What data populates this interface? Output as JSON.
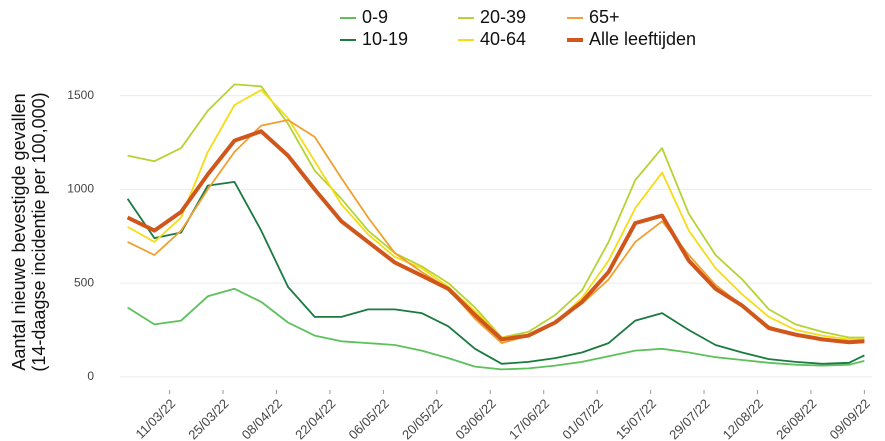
{
  "chart_data": {
    "type": "line",
    "ylabel": [
      "Aantal nieuwe bevestigde gevallen",
      "(14-daagse incidentie per 100,000)"
    ],
    "x": [
      "28/02/22",
      "07/03/22",
      "14/03/22",
      "21/03/22",
      "28/03/22",
      "04/04/22",
      "11/04/22",
      "18/04/22",
      "25/04/22",
      "02/05/22",
      "09/05/22",
      "16/05/22",
      "23/05/22",
      "30/05/22",
      "06/06/22",
      "13/06/22",
      "20/06/22",
      "27/06/22",
      "04/07/22",
      "11/07/22",
      "18/07/22",
      "25/07/22",
      "01/08/22",
      "08/08/22",
      "15/08/22",
      "22/08/22",
      "29/08/22",
      "05/09/22",
      "09/09/22"
    ],
    "series": [
      {
        "name": "0-9",
        "color": "#5cc15c",
        "values": [
          370,
          280,
          300,
          430,
          470,
          400,
          290,
          220,
          190,
          180,
          170,
          140,
          100,
          55,
          40,
          45,
          60,
          80,
          110,
          140,
          150,
          130,
          105,
          90,
          75,
          65,
          60,
          65,
          85
        ]
      },
      {
        "name": "10-19",
        "color": "#1a7a3f",
        "values": [
          950,
          740,
          770,
          1020,
          1040,
          780,
          480,
          320,
          320,
          360,
          360,
          340,
          270,
          150,
          70,
          80,
          100,
          130,
          180,
          300,
          340,
          250,
          170,
          130,
          95,
          80,
          70,
          75,
          115
        ]
      },
      {
        "name": "20-39",
        "color": "#b5d334",
        "values": [
          1180,
          1150,
          1220,
          1420,
          1560,
          1550,
          1350,
          1100,
          950,
          780,
          660,
          590,
          500,
          370,
          210,
          240,
          330,
          460,
          720,
          1050,
          1220,
          870,
          650,
          520,
          360,
          280,
          240,
          210,
          210
        ]
      },
      {
        "name": "40-64",
        "color": "#f5dc14",
        "values": [
          800,
          720,
          850,
          1200,
          1450,
          1530,
          1380,
          1150,
          920,
          760,
          640,
          580,
          480,
          350,
          210,
          220,
          290,
          420,
          620,
          900,
          1090,
          780,
          580,
          440,
          320,
          250,
          220,
          200,
          200
        ]
      },
      {
        "name": "65+",
        "color": "#f0a030",
        "values": [
          720,
          650,
          780,
          1000,
          1200,
          1340,
          1370,
          1280,
          1060,
          850,
          660,
          560,
          470,
          310,
          180,
          220,
          290,
          390,
          520,
          720,
          830,
          650,
          490,
          380,
          270,
          220,
          200,
          185,
          190
        ]
      },
      {
        "name": "Alle leeftijden",
        "color": "#d0561c",
        "values": [
          850,
          780,
          880,
          1080,
          1260,
          1310,
          1180,
          1000,
          830,
          720,
          610,
          540,
          470,
          330,
          200,
          220,
          290,
          400,
          560,
          820,
          860,
          620,
          470,
          380,
          260,
          225,
          200,
          185,
          190
        ]
      }
    ],
    "xlim": [
      "26/02/22",
      "11/09/22"
    ],
    "xticks": [
      "11/03/22",
      "25/03/22",
      "08/04/22",
      "22/04/22",
      "06/05/22",
      "20/05/22",
      "03/06/22",
      "17/06/22",
      "01/07/22",
      "15/07/22",
      "29/07/22",
      "12/08/22",
      "26/08/22",
      "09/09/22"
    ],
    "ylim": [
      -70,
      1690
    ],
    "yticks": [
      0,
      500,
      1000,
      1500
    ],
    "grid": true
  }
}
